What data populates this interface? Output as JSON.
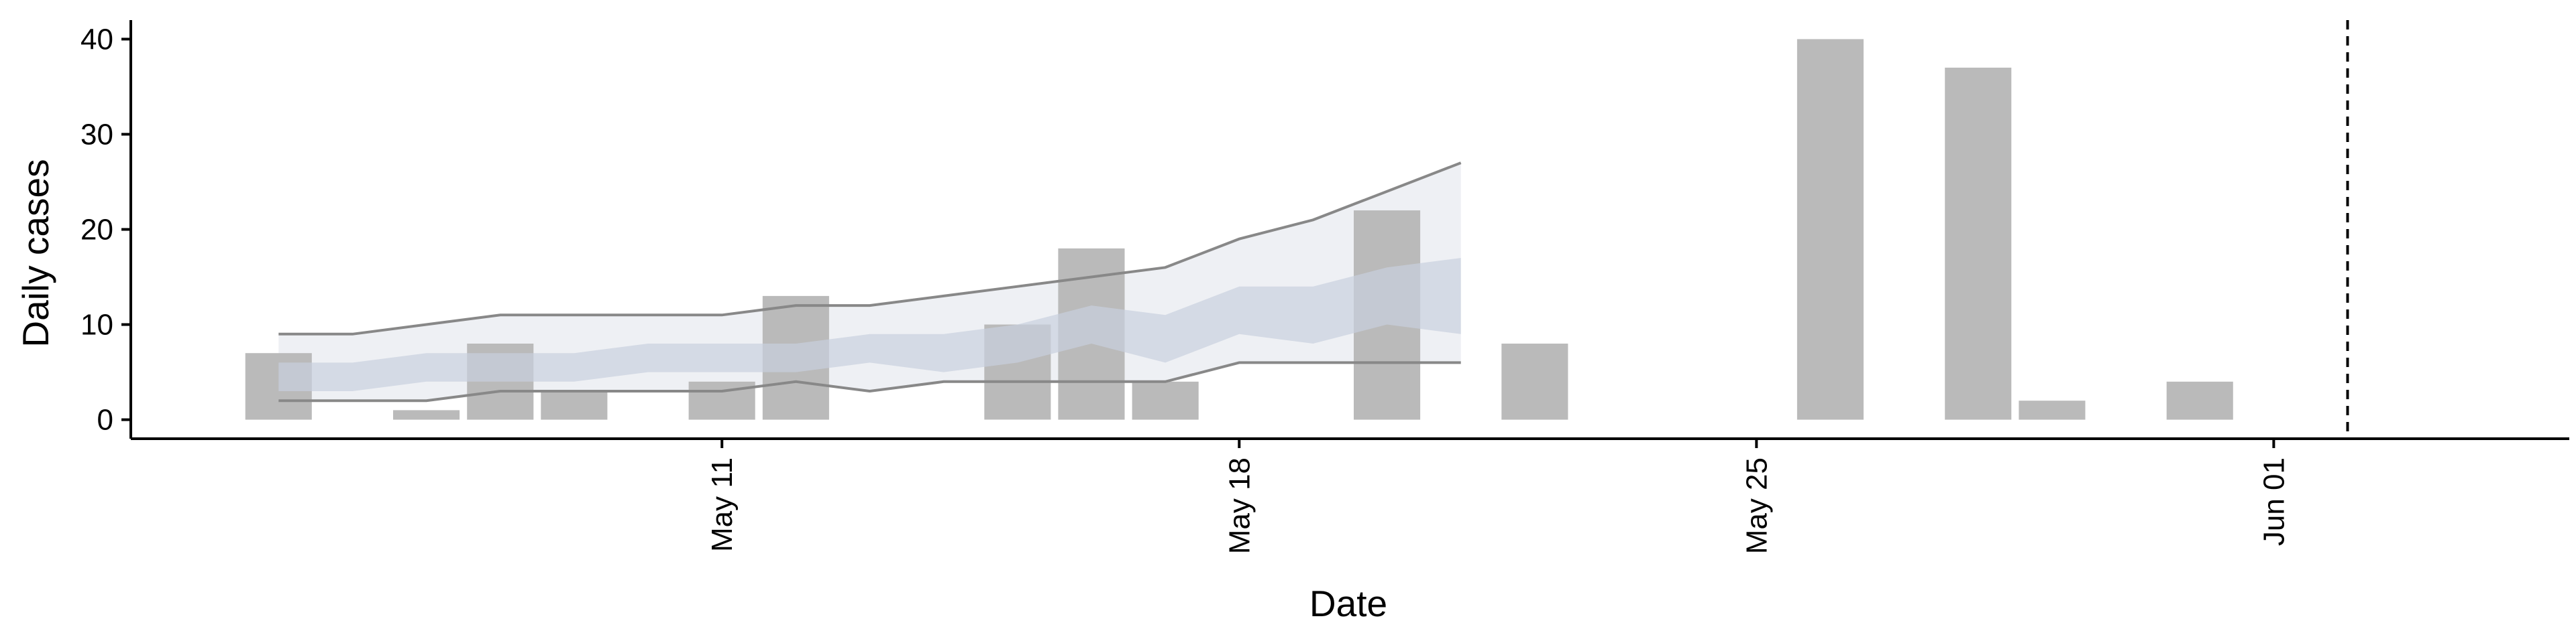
{
  "chart_data": {
    "type": "bar",
    "title": "",
    "xlabel": "Date",
    "ylabel": "Daily cases",
    "x_type": "date",
    "xlim": [
      "2020-05-03",
      "2020-06-05"
    ],
    "ylim": [
      -2,
      42
    ],
    "x_ticks": [
      {
        "date": "2020-05-11",
        "label": "May 11"
      },
      {
        "date": "2020-05-18",
        "label": "May 18"
      },
      {
        "date": "2020-05-25",
        "label": "May 25"
      },
      {
        "date": "2020-06-01",
        "label": "Jun 01"
      }
    ],
    "y_ticks": [
      0,
      10,
      20,
      30,
      40
    ],
    "grid": false,
    "bars": {
      "color": "#bababa",
      "points": [
        {
          "date": "2020-05-05",
          "value": 7
        },
        {
          "date": "2020-05-07",
          "value": 1
        },
        {
          "date": "2020-05-08",
          "value": 8
        },
        {
          "date": "2020-05-09",
          "value": 3
        },
        {
          "date": "2020-05-11",
          "value": 4
        },
        {
          "date": "2020-05-12",
          "value": 13
        },
        {
          "date": "2020-05-15",
          "value": 10
        },
        {
          "date": "2020-05-16",
          "value": 18
        },
        {
          "date": "2020-05-17",
          "value": 4
        },
        {
          "date": "2020-05-20",
          "value": 22
        },
        {
          "date": "2020-05-22",
          "value": 8
        },
        {
          "date": "2020-05-26",
          "value": 40
        },
        {
          "date": "2020-05-28",
          "value": 37
        },
        {
          "date": "2020-05-29",
          "value": 2
        },
        {
          "date": "2020-05-31",
          "value": 4
        }
      ]
    },
    "projection": {
      "dates": [
        "2020-05-05",
        "2020-05-06",
        "2020-05-07",
        "2020-05-08",
        "2020-05-09",
        "2020-05-10",
        "2020-05-11",
        "2020-05-12",
        "2020-05-13",
        "2020-05-14",
        "2020-05-15",
        "2020-05-16",
        "2020-05-17",
        "2020-05-18",
        "2020-05-19",
        "2020-05-20",
        "2020-05-21"
      ],
      "outer_upper": [
        9,
        9,
        10,
        11,
        11,
        11,
        11,
        12,
        12,
        13,
        14,
        15,
        16,
        19,
        21,
        24,
        27
      ],
      "outer_lower": [
        2,
        2,
        2,
        3,
        3,
        3,
        3,
        4,
        3,
        4,
        4,
        4,
        4,
        6,
        6,
        6,
        6
      ],
      "inner_upper": [
        6,
        6,
        7,
        7,
        7,
        8,
        8,
        8,
        9,
        9,
        10,
        12,
        11,
        14,
        14,
        16,
        17
      ],
      "inner_lower": [
        3,
        3,
        4,
        4,
        4,
        5,
        5,
        5,
        6,
        5,
        6,
        8,
        6,
        9,
        8,
        10,
        9
      ],
      "outer_color": "#eceef3",
      "inner_color": "#c9d0de",
      "bound_line_color": "#888888"
    },
    "reference_line": {
      "date": "2020-06-01",
      "style": "dashed",
      "color": "#000000"
    }
  }
}
